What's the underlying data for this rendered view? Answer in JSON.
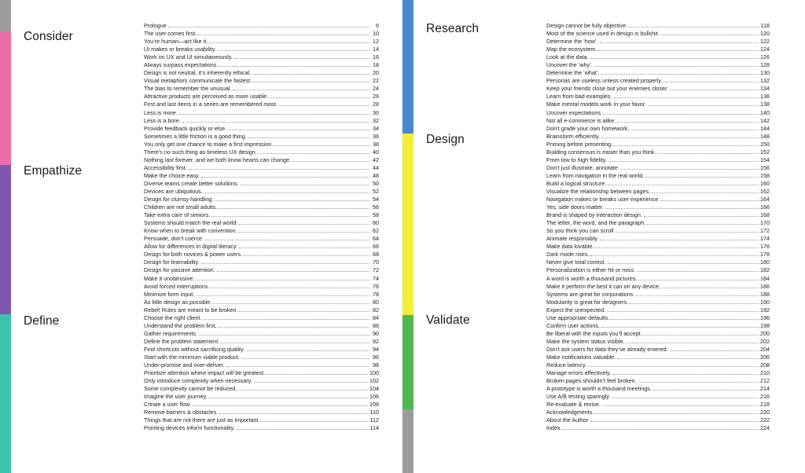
{
  "colors": {
    "gray": "#9c9c9c",
    "pink": "#ea6fa8",
    "purple": "#7f56b0",
    "teal": "#3fc2aa",
    "blue": "#4a89cf",
    "yellow": "#f4ee3a",
    "green": "#4eb84e"
  },
  "left": {
    "sections": [
      {
        "title": "Consider",
        "color": "pink"
      },
      {
        "title": "Empathize",
        "color": "purple"
      },
      {
        "title": "Define",
        "color": "teal"
      }
    ],
    "entries": [
      {
        "title": "Prologue",
        "page": "6"
      },
      {
        "title": "The user comes first.",
        "page": "10"
      },
      {
        "title": "You’re human—act like it.",
        "page": "12"
      },
      {
        "title": "UI makes or breaks usability.",
        "page": "14"
      },
      {
        "title": "Work on UX and UI simultaneously.",
        "page": "16"
      },
      {
        "title": "Always surpass expectations.",
        "page": "18"
      },
      {
        "title": "Design is not neutral, it’s inherently ethical.",
        "page": "20"
      },
      {
        "title": "Visual metaphors communicate the fastest.",
        "page": "22"
      },
      {
        "title": "The bias to remember the unusual.",
        "page": "24"
      },
      {
        "title": "Attractive products are perceived as more usable.",
        "page": "26"
      },
      {
        "title": "First and last items in a series are remembered most.",
        "page": "28"
      },
      {
        "title": "Less is more.",
        "page": "30"
      },
      {
        "title": "Less is a bore.",
        "page": "32"
      },
      {
        "title": "Provide feedback quickly or else.",
        "page": "34"
      },
      {
        "title": "Sometimes a little friction is a good thing.",
        "page": "36"
      },
      {
        "title": "You only get one chance to make a first impression.",
        "page": "38"
      },
      {
        "title": "There’s no such thing as timeless UX design.",
        "page": "40"
      },
      {
        "title": "Nothing last forever, and we both know hearts can change.",
        "page": "42"
      },
      {
        "title": "Accessibility first.",
        "page": "44"
      },
      {
        "title": "Make the choice easy.",
        "page": "48"
      },
      {
        "title": "Diverse teams create better solutions.",
        "page": "50"
      },
      {
        "title": "Devices are ubiquitous.",
        "page": "52"
      },
      {
        "title": "Design for clumsy handling.",
        "page": "54"
      },
      {
        "title": "Children are not small adults.",
        "page": "56"
      },
      {
        "title": "Take extra care of seniors.",
        "page": "58"
      },
      {
        "title": "Systems should match the real world.",
        "page": "60"
      },
      {
        "title": "Know when to break with convention.",
        "page": "62"
      },
      {
        "title": "Persuade, don’t coerce.",
        "page": "64"
      },
      {
        "title": "Allow for differences in digital literacy.",
        "page": "66"
      },
      {
        "title": "Design for both novices & power users.",
        "page": "68"
      },
      {
        "title": "Design for learnability.",
        "page": "70"
      },
      {
        "title": "Design for passive attention.",
        "page": "72"
      },
      {
        "title": "Make it unobtrusive.",
        "page": "74"
      },
      {
        "title": "Avoid forced interruptions.",
        "page": "76"
      },
      {
        "title": "Minimize form input.",
        "page": "78"
      },
      {
        "title": "As little design as possible.",
        "page": "80"
      },
      {
        "title": "Rebel! Rules are meant to be broken.",
        "page": "82"
      },
      {
        "title": "Choose the right client.",
        "page": "84"
      },
      {
        "title": "Understand the problem first.",
        "page": "88"
      },
      {
        "title": "Gather requirements.",
        "page": "90"
      },
      {
        "title": "Define the problem statement.",
        "page": "92"
      },
      {
        "title": "Find shortcuts without sacrificing quality.",
        "page": "94"
      },
      {
        "title": "Start with the minimum viable product.",
        "page": "96"
      },
      {
        "title": "Under-promise and over-deliver.",
        "page": "98"
      },
      {
        "title": "Prioritize attention where impact will be greatest.",
        "page": "100"
      },
      {
        "title": "Only introduce complexity when necessary.",
        "page": "102"
      },
      {
        "title": "Some complexity cannot be reduced.",
        "page": "104"
      },
      {
        "title": "Imagine the user journey.",
        "page": "106"
      },
      {
        "title": "Create a user flow.",
        "page": "108"
      },
      {
        "title": "Remove barriers & obstacles.",
        "page": "110"
      },
      {
        "title": "Things that are not there are just as important.",
        "page": "112"
      },
      {
        "title": "Pointing devices inform functionality.",
        "page": "114"
      }
    ]
  },
  "right": {
    "sections": [
      {
        "title": "Research",
        "color": "blue"
      },
      {
        "title": "Design",
        "color": "yellow"
      },
      {
        "title": "Validate",
        "color": "green"
      }
    ],
    "entries": [
      {
        "title": "Design cannot be fully objective.",
        "page": "118"
      },
      {
        "title": "Most of the science used in design is bullshit.",
        "page": "120"
      },
      {
        "title": "Determine the ‘how’.",
        "page": "122"
      },
      {
        "title": "Map the ecosystem.",
        "page": "124"
      },
      {
        "title": "Look at the data.",
        "page": "126"
      },
      {
        "title": "Uncover the ‘why’.",
        "page": "128"
      },
      {
        "title": "Determine the ‘what’.",
        "page": "130"
      },
      {
        "title": "Personas are useless unless created properly.",
        "page": "132"
      },
      {
        "title": "Keep your friends close but your enemies closer.",
        "page": "134"
      },
      {
        "title": "Learn from bad examples.",
        "page": "136"
      },
      {
        "title": "Make mental models work in your favor.",
        "page": "138"
      },
      {
        "title": "Uncover expectations.",
        "page": "140"
      },
      {
        "title": "Not all e-commerce is alike.",
        "page": "142"
      },
      {
        "title": "Don’t grade your own homework.",
        "page": "144"
      },
      {
        "title": "Brainstorm efficiently.",
        "page": "148"
      },
      {
        "title": "Priming before presenting.",
        "page": "150"
      },
      {
        "title": "Building consensus is easier than you think.",
        "page": "152"
      },
      {
        "title": "From low to high fidelity.",
        "page": "154"
      },
      {
        "title": "Don’t just illustrate, annotate.",
        "page": "156"
      },
      {
        "title": "Learn from navigation in the real world.",
        "page": "158"
      },
      {
        "title": "Build a logical structure.",
        "page": "160"
      },
      {
        "title": "Visualize the relationship between pages.",
        "page": "162"
      },
      {
        "title": "Navigation makes or breaks user experience.",
        "page": "164"
      },
      {
        "title": "Yes, side doors matter.",
        "page": "166"
      },
      {
        "title": "Brand is shaped by interaction design.",
        "page": "168"
      },
      {
        "title": "The letter, the word, and the paragraph.",
        "page": "170"
      },
      {
        "title": "So you think you can scroll.",
        "page": "172"
      },
      {
        "title": "Animate responsibly.",
        "page": "174"
      },
      {
        "title": "Make data lovable.",
        "page": "176"
      },
      {
        "title": "Dark mode rises.",
        "page": "178"
      },
      {
        "title": "Never give total control.",
        "page": "180"
      },
      {
        "title": "Personalization is either hit or miss.",
        "page": "182"
      },
      {
        "title": "A word is worth a thousand pictures.",
        "page": "184"
      },
      {
        "title": "Make it perform the best it can on any device.",
        "page": "186"
      },
      {
        "title": "Systems are great for corporations.",
        "page": "188"
      },
      {
        "title": "Modularity is great for designers.",
        "page": "190"
      },
      {
        "title": "Expect the unexpected.",
        "page": "192"
      },
      {
        "title": "Use appropriate defaults.",
        "page": "196"
      },
      {
        "title": "Confirm user actions.",
        "page": "198"
      },
      {
        "title": "Be liberal with the inputs you’ll accept.",
        "page": "200"
      },
      {
        "title": "Make the system status visible.",
        "page": "202"
      },
      {
        "title": "Don’t ask users for data they’ve already entered.",
        "page": "204"
      },
      {
        "title": "Make notifications valuable.",
        "page": "206"
      },
      {
        "title": "Reduce latency.",
        "page": "208"
      },
      {
        "title": "Manage errors effectively.",
        "page": "210"
      },
      {
        "title": "Broken pages shouldn’t feel broken.",
        "page": "212"
      },
      {
        "title": "A prototype is worth a thousand meetings.",
        "page": "214"
      },
      {
        "title": "Use A/B testing sparingly.",
        "page": "216"
      },
      {
        "title": "Re-evaluate & revise.",
        "page": "218"
      },
      {
        "title": "Acknowledgments",
        "page": "220"
      },
      {
        "title": "About the Author",
        "page": "222"
      },
      {
        "title": "Index",
        "page": "224"
      }
    ]
  }
}
